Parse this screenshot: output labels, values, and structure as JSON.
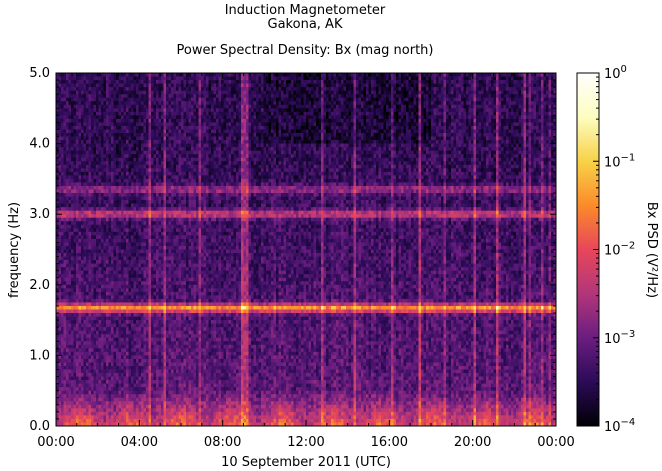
{
  "chart_data": {
    "type": "heatmap",
    "title_lines": [
      "Induction Magnetometer",
      "Gakona, AK"
    ],
    "subtitle": "Power Spectral Density: Bx (mag north)",
    "xlabel": "10 September 2011 (UTC)",
    "ylabel": "frequency (Hz)",
    "xticks": [
      "00:00",
      "04:00",
      "08:00",
      "12:00",
      "16:00",
      "20:00",
      "00:00"
    ],
    "xlim_hours": [
      0,
      24
    ],
    "yticks": [
      "0.0",
      "1.0",
      "2.0",
      "3.0",
      "4.0",
      "5.0"
    ],
    "ylim": [
      0.0,
      5.0
    ],
    "colorbar": {
      "label": "Bx PSD (V²/Hz)",
      "scale": "log",
      "range": [
        0.0001,
        1
      ],
      "tick_bases": [
        "10",
        "10",
        "10",
        "10",
        "10"
      ],
      "tick_exponents": [
        "0",
        "−1",
        "−2",
        "−3",
        "−4"
      ],
      "colormap": [
        "#000004",
        "#2b0b57",
        "#6b1d81",
        "#b2367a",
        "#e8465a",
        "#fb8b2a",
        "#f8d248",
        "#fcfdbf",
        "#ffffff"
      ]
    },
    "features": {
      "bands_hz": [
        1.67,
        3.0,
        3.35
      ],
      "band_strength": [
        1.0,
        0.6,
        0.4
      ],
      "low_freq_activity_hz": [
        0.0,
        0.5
      ]
    }
  }
}
